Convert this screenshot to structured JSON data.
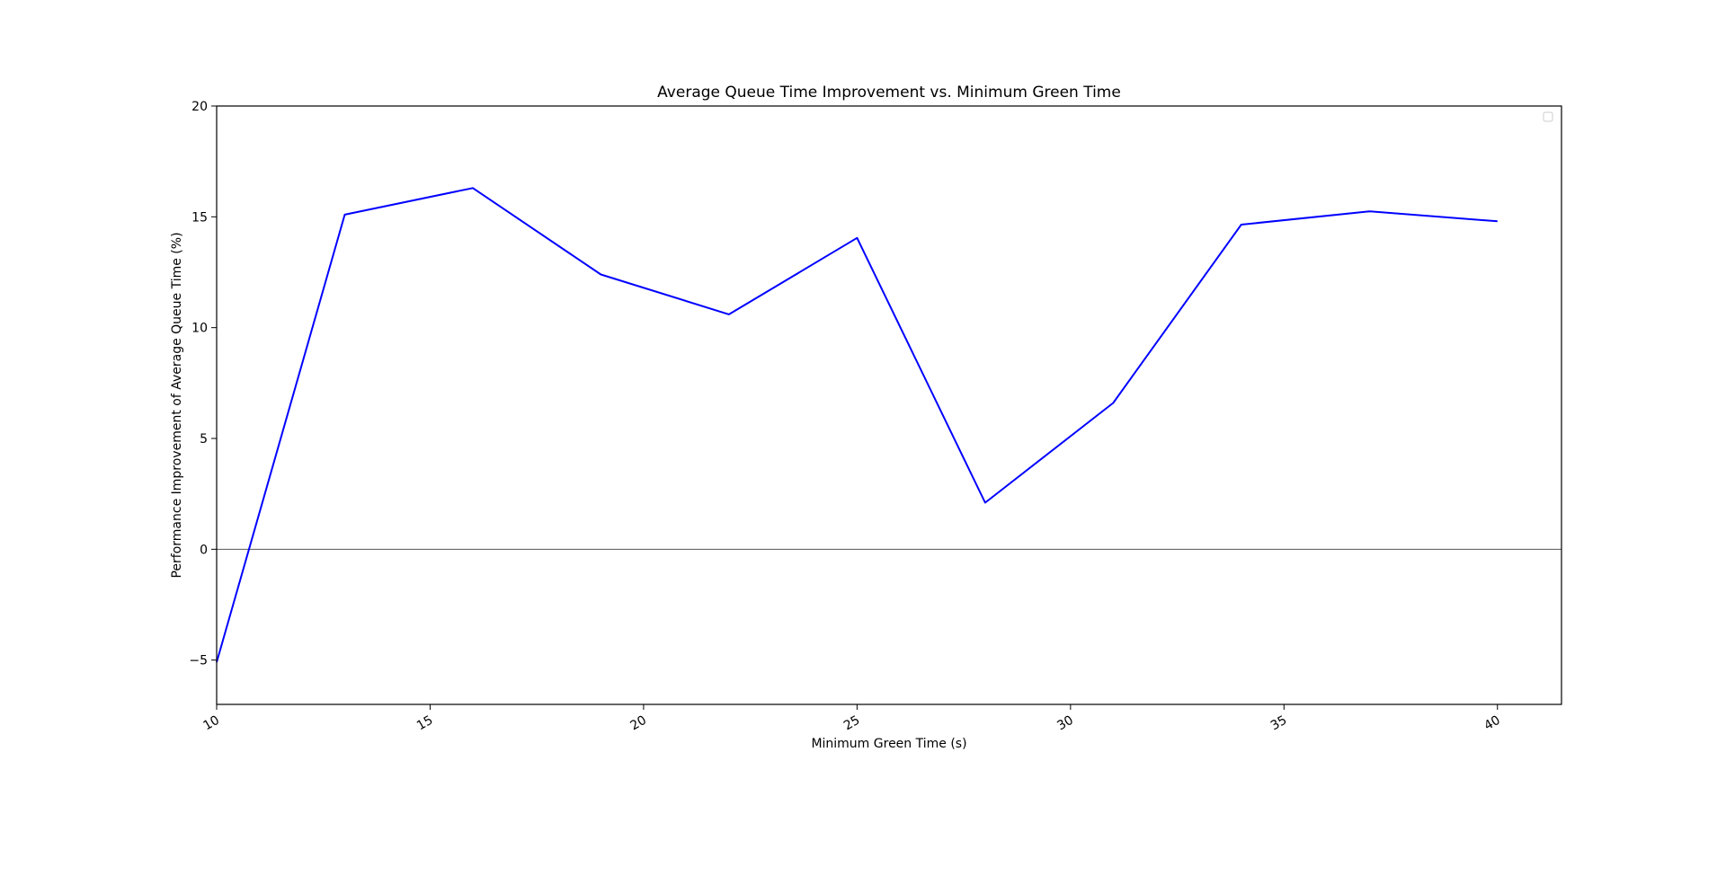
{
  "chart_data": {
    "type": "line",
    "title": "Average Queue Time Improvement vs. Minimum Green Time",
    "xlabel": "Minimum Green Time (s)",
    "ylabel": "Performance Improvement of Average Queue Time (%)",
    "xlim": [
      10,
      41.5
    ],
    "ylim": [
      -7,
      20
    ],
    "xticks": [
      10,
      15,
      20,
      25,
      30,
      35,
      40
    ],
    "yticks": [
      -5,
      0,
      5,
      10,
      15,
      20
    ],
    "grid": false,
    "legend": "top-right (empty)",
    "zero_line": true,
    "series": [
      {
        "color": "#0000ff",
        "x": [
          10,
          13,
          16,
          19,
          22,
          25,
          28,
          31,
          34,
          37,
          40
        ],
        "y": [
          -5.1,
          15.1,
          16.3,
          12.4,
          10.6,
          14.05,
          2.1,
          6.6,
          14.65,
          15.25,
          14.8
        ]
      }
    ]
  }
}
